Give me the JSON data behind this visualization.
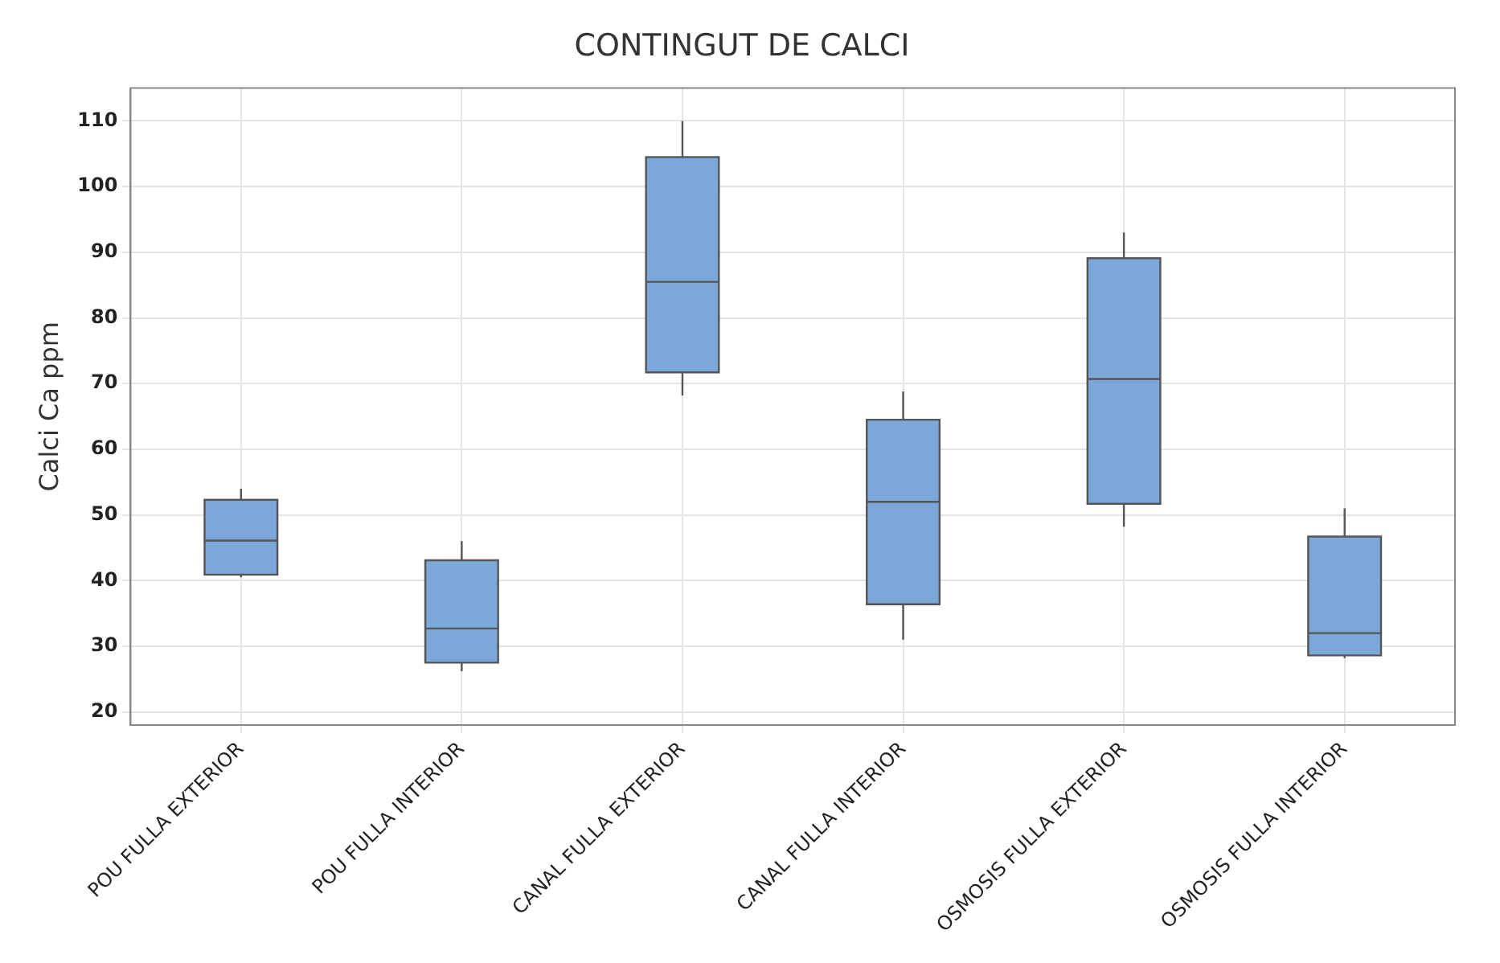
{
  "chart_data": {
    "type": "box",
    "title": "CONTINGUT DE CALCI",
    "ylabel": "Calci Ca ppm",
    "categories": [
      "POU FULLA EXTERIOR",
      "POU FULLA INTERIOR",
      "CANAL FULLA EXTERIOR",
      "CANAL FULLA INTERIOR",
      "OSMOSIS FULLA EXTERIOR",
      "OSMOSIS FULLA INTERIOR"
    ],
    "color": "#7ba7d9",
    "boxes": [
      {
        "low": 40.5,
        "q1": 40.9,
        "median": 46.1,
        "q3": 52.3,
        "high": 54
      },
      {
        "low": 26.2,
        "q1": 27.5,
        "median": 32.7,
        "q3": 43.1,
        "high": 46
      },
      {
        "low": 68.2,
        "q1": 71.7,
        "median": 85.5,
        "q3": 104.5,
        "high": 110
      },
      {
        "low": 31,
        "q1": 36.4,
        "median": 52,
        "q3": 64.5,
        "high": 68.8
      },
      {
        "low": 48.2,
        "q1": 51.7,
        "median": 70.7,
        "q3": 89.1,
        "high": 93
      },
      {
        "low": 28.2,
        "q1": 28.6,
        "median": 32,
        "q3": 46.7,
        "high": 51
      }
    ],
    "ylim": [
      18,
      115
    ],
    "yticks": [
      20,
      30,
      40,
      50,
      60,
      70,
      80,
      90,
      100,
      110
    ],
    "grid": true,
    "legend": false
  }
}
